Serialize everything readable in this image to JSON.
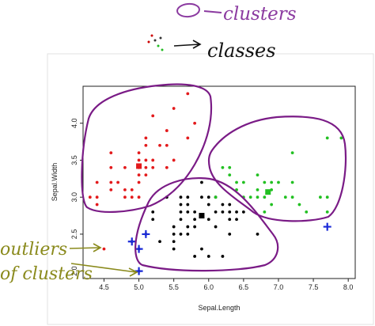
{
  "annotations": {
    "top_left": "O",
    "top": "clusters",
    "middle": "classes",
    "outliers_line1": "outliers",
    "outliers_line2": "of clusters"
  },
  "colors": {
    "purple": "#7a1b86",
    "olive": "#8a8a1c",
    "red": "#e31a1c",
    "black": "#000000",
    "green": "#22c022",
    "blue": "#1a2ad8",
    "ink": "#111111"
  },
  "chart_data": {
    "type": "scatter",
    "xlabel": "Sepal.Length",
    "ylabel": "Sepal.Width",
    "xlim": [
      4.2,
      8.1
    ],
    "ylim": [
      1.9,
      4.5
    ],
    "x_ticks": [
      "4.5",
      "5.0",
      "5.5",
      "6.0",
      "6.5",
      "7.0",
      "7.5",
      "8.0"
    ],
    "x_tick_values": [
      4.5,
      5.0,
      5.5,
      6.0,
      6.5,
      7.0,
      7.5,
      8.0
    ],
    "y_ticks": [
      "2.0",
      "2.5",
      "3.0",
      "3.5",
      "4.0"
    ],
    "y_tick_values": [
      2.0,
      2.5,
      3.0,
      3.5,
      4.0
    ],
    "grid": false,
    "series": [
      {
        "color": "red",
        "points": [
          [
            4.3,
            3.0
          ],
          [
            4.4,
            2.9
          ],
          [
            4.4,
            3.0
          ],
          [
            4.4,
            3.2
          ],
          [
            4.5,
            2.3
          ],
          [
            4.6,
            3.1
          ],
          [
            4.6,
            3.2
          ],
          [
            4.6,
            3.4
          ],
          [
            4.6,
            3.6
          ],
          [
            4.7,
            3.2
          ],
          [
            4.8,
            3.0
          ],
          [
            4.8,
            3.1
          ],
          [
            4.8,
            3.4
          ],
          [
            4.9,
            3.0
          ],
          [
            4.9,
            3.1
          ],
          [
            5.0,
            3.0
          ],
          [
            5.0,
            3.2
          ],
          [
            5.0,
            3.3
          ],
          [
            5.0,
            3.4
          ],
          [
            5.0,
            3.5
          ],
          [
            5.0,
            3.6
          ],
          [
            5.1,
            3.3
          ],
          [
            5.1,
            3.4
          ],
          [
            5.1,
            3.5
          ],
          [
            5.1,
            3.7
          ],
          [
            5.1,
            3.8
          ],
          [
            5.2,
            3.4
          ],
          [
            5.2,
            3.5
          ],
          [
            5.2,
            4.1
          ],
          [
            5.3,
            3.7
          ],
          [
            5.4,
            3.4
          ],
          [
            5.4,
            3.7
          ],
          [
            5.4,
            3.9
          ],
          [
            5.5,
            3.5
          ],
          [
            5.5,
            4.2
          ],
          [
            5.7,
            3.8
          ],
          [
            5.7,
            4.4
          ],
          [
            5.8,
            4.0
          ]
        ]
      },
      {
        "color": "black",
        "points": [
          [
            4.9,
            2.4
          ],
          [
            5.0,
            2.3
          ],
          [
            5.0,
            2.0
          ],
          [
            5.1,
            2.5
          ],
          [
            5.2,
            2.7
          ],
          [
            5.4,
            3.0
          ],
          [
            5.5,
            2.3
          ],
          [
            5.5,
            2.4
          ],
          [
            5.5,
            2.5
          ],
          [
            5.5,
            2.6
          ],
          [
            5.6,
            2.5
          ],
          [
            5.6,
            2.7
          ],
          [
            5.6,
            2.8
          ],
          [
            5.6,
            2.9
          ],
          [
            5.6,
            3.0
          ],
          [
            5.7,
            2.5
          ],
          [
            5.7,
            2.6
          ],
          [
            5.7,
            2.8
          ],
          [
            5.7,
            2.9
          ],
          [
            5.7,
            3.0
          ],
          [
            5.8,
            2.6
          ],
          [
            5.8,
            2.7
          ],
          [
            5.8,
            2.8
          ],
          [
            5.9,
            3.0
          ],
          [
            5.9,
            3.2
          ],
          [
            6.0,
            2.2
          ],
          [
            6.0,
            2.7
          ],
          [
            6.0,
            2.9
          ],
          [
            6.0,
            3.0
          ],
          [
            6.1,
            2.6
          ],
          [
            6.1,
            2.8
          ],
          [
            6.1,
            3.0
          ],
          [
            6.2,
            2.2
          ],
          [
            6.2,
            2.8
          ],
          [
            6.2,
            2.9
          ],
          [
            6.3,
            2.5
          ],
          [
            6.3,
            2.7
          ],
          [
            6.3,
            2.8
          ],
          [
            6.4,
            2.7
          ],
          [
            6.4,
            2.8
          ],
          [
            6.5,
            2.8
          ],
          [
            6.7,
            2.5
          ],
          [
            5.8,
            2.2
          ],
          [
            5.9,
            2.3
          ],
          [
            5.3,
            2.4
          ],
          [
            5.2,
            2.8
          ],
          [
            6.3,
            2.9
          ]
        ]
      },
      {
        "color": "green",
        "points": [
          [
            6.3,
            3.3
          ],
          [
            6.4,
            3.1
          ],
          [
            6.4,
            3.2
          ],
          [
            6.5,
            3.0
          ],
          [
            6.5,
            3.2
          ],
          [
            6.6,
            3.0
          ],
          [
            6.7,
            3.0
          ],
          [
            6.7,
            3.1
          ],
          [
            6.7,
            3.3
          ],
          [
            6.8,
            3.0
          ],
          [
            6.8,
            3.2
          ],
          [
            6.9,
            3.1
          ],
          [
            6.9,
            3.2
          ],
          [
            7.0,
            3.2
          ],
          [
            7.1,
            3.0
          ],
          [
            7.2,
            3.0
          ],
          [
            7.2,
            3.2
          ],
          [
            7.2,
            3.6
          ],
          [
            7.3,
            2.9
          ],
          [
            7.4,
            2.8
          ],
          [
            7.6,
            3.0
          ],
          [
            7.7,
            2.8
          ],
          [
            7.7,
            3.0
          ],
          [
            7.7,
            3.8
          ],
          [
            7.9,
            3.8
          ],
          [
            6.9,
            2.9
          ],
          [
            6.3,
            3.4
          ],
          [
            6.8,
            2.8
          ],
          [
            6.1,
            3.0
          ],
          [
            6.2,
            3.4
          ]
        ]
      }
    ],
    "centroids": [
      {
        "color": "red",
        "x": 5.0,
        "y": 3.42
      },
      {
        "color": "black",
        "x": 5.9,
        "y": 2.75
      },
      {
        "color": "green",
        "x": 6.85,
        "y": 3.07
      }
    ],
    "outliers": [
      {
        "color": "blue",
        "x": 4.9,
        "y": 2.4
      },
      {
        "color": "blue",
        "x": 5.0,
        "y": 2.3
      },
      {
        "color": "blue",
        "x": 5.1,
        "y": 2.5
      },
      {
        "color": "blue",
        "x": 5.0,
        "y": 2.0
      },
      {
        "color": "blue",
        "x": 7.7,
        "y": 2.6
      }
    ]
  }
}
